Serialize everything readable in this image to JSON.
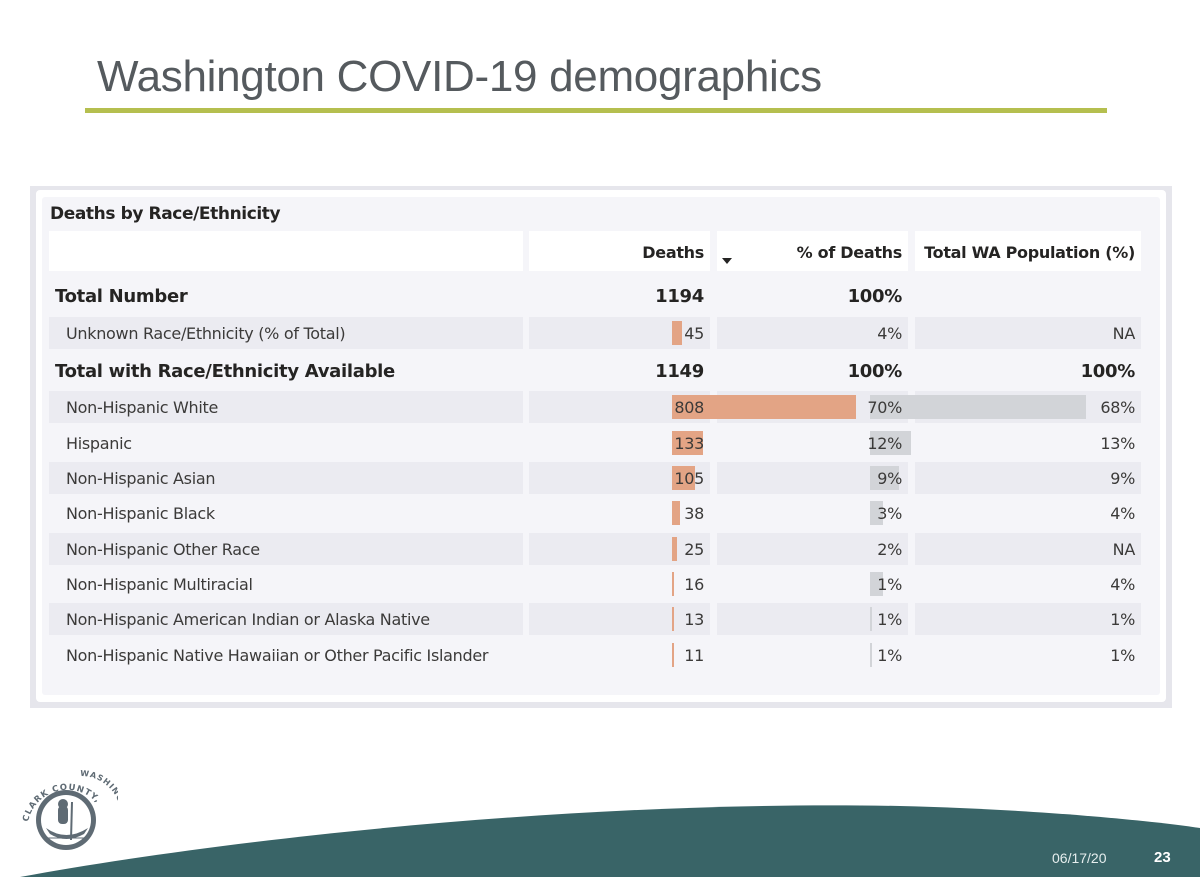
{
  "slide": {
    "title": "Washington COVID-19 demographics",
    "date": "06/17/20",
    "page_number": "23",
    "logo": {
      "icon": "clark-county-seal-icon",
      "text": "CLARK COUNTY, WASHINGTON"
    },
    "colors": {
      "title_rule": "#b5bf4f",
      "footer": "#396467",
      "deaths_bar": "#e3a485",
      "population_bar": "#d2d4d8"
    }
  },
  "visual": {
    "title": "Deaths by Race/Ethnicity",
    "sort_indicator": "sort-descending-icon",
    "columns": {
      "label": "",
      "deaths": "Deaths",
      "pct_deaths": "% of Deaths",
      "wa_population": "Total WA Population (%)"
    },
    "rows": [
      {
        "label": "Total Number",
        "deaths": "1194",
        "pct_deaths": "100%",
        "wa_population": "",
        "style": "bold",
        "pct_bar": null,
        "pop_bar": null
      },
      {
        "label": "Unknown Race/Ethnicity (% of Total)",
        "deaths": "45",
        "pct_deaths": "4%",
        "wa_population": "NA",
        "style": "reg",
        "pct_bar": 4,
        "pop_bar": null
      },
      {
        "label": "Total with Race/Ethnicity Available",
        "deaths": "1149",
        "pct_deaths": "100%",
        "wa_population": "100%",
        "style": "bold",
        "pct_bar": null,
        "pop_bar": null
      },
      {
        "label": "Non-Hispanic White",
        "deaths": "808",
        "pct_deaths": "70%",
        "wa_population": "68%",
        "style": "reg",
        "pct_bar": 70,
        "pop_bar": 68
      },
      {
        "label": "Hispanic",
        "deaths": "133",
        "pct_deaths": "12%",
        "wa_population": "13%",
        "style": "reg",
        "pct_bar": 12,
        "pop_bar": 13
      },
      {
        "label": "Non-Hispanic Asian",
        "deaths": "105",
        "pct_deaths": "9%",
        "wa_population": "9%",
        "style": "reg",
        "pct_bar": 9,
        "pop_bar": 9
      },
      {
        "label": "Non-Hispanic Black",
        "deaths": "38",
        "pct_deaths": "3%",
        "wa_population": "4%",
        "style": "reg",
        "pct_bar": 3,
        "pop_bar": 4
      },
      {
        "label": "Non-Hispanic Other Race",
        "deaths": "25",
        "pct_deaths": "2%",
        "wa_population": "NA",
        "style": "reg",
        "pct_bar": 2,
        "pop_bar": null
      },
      {
        "label": "Non-Hispanic Multiracial",
        "deaths": "16",
        "pct_deaths": "1%",
        "wa_population": "4%",
        "style": "reg",
        "pct_bar": 1,
        "pop_bar": 4
      },
      {
        "label": "Non-Hispanic American Indian or Alaska Native",
        "deaths": "13",
        "pct_deaths": "1%",
        "wa_population": "1%",
        "style": "reg",
        "pct_bar": 1,
        "pop_bar": 1
      },
      {
        "label": "Non-Hispanic Native Hawaiian or Other Pacific Islander",
        "deaths": "11",
        "pct_deaths": "1%",
        "wa_population": "1%",
        "style": "reg",
        "pct_bar": 1,
        "pop_bar": 1
      }
    ]
  }
}
